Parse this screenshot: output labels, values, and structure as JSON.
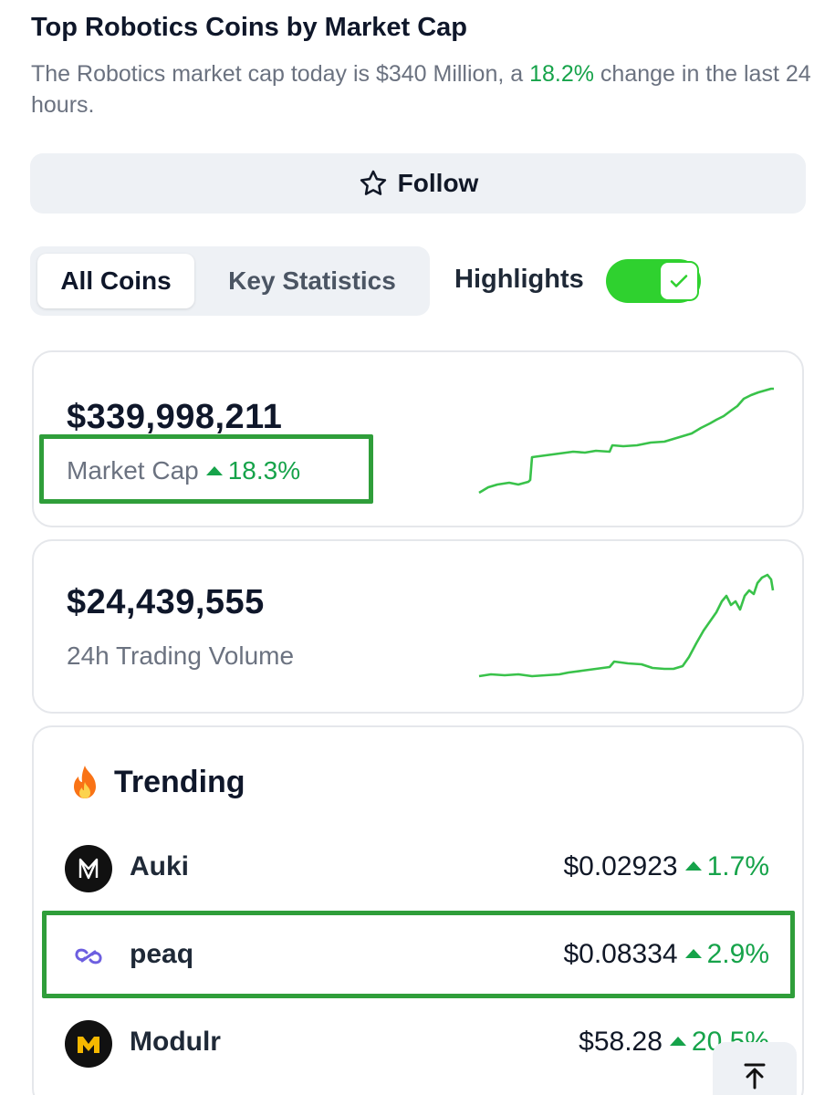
{
  "header": {
    "title": "Top Robotics Coins by Market Cap",
    "subtitle_prefix": "The Robotics market cap today is $340 Million, a ",
    "subtitle_change": "18.2%",
    "subtitle_suffix": " change in the last 24 hours."
  },
  "follow": {
    "label": "Follow",
    "icon": "star-outline-icon"
  },
  "tabs": [
    {
      "label": "All Coins",
      "active": true
    },
    {
      "label": "Key Statistics",
      "active": false
    }
  ],
  "highlights": {
    "label": "Highlights",
    "enabled": true
  },
  "market_cap": {
    "value": "$339,998,211",
    "label": "Market Cap",
    "change": "18.3%",
    "direction": "up"
  },
  "volume": {
    "value": "$24,439,555",
    "label": "24h Trading Volume"
  },
  "trending": {
    "title": "Trending",
    "icon": "fire-icon",
    "coins": [
      {
        "name": "Auki",
        "price": "$0.02923",
        "change": "1.7%",
        "logo": "auki-logo"
      },
      {
        "name": "peaq",
        "price": "$0.08334",
        "change": "2.9%",
        "logo": "peaq-logo"
      },
      {
        "name": "Modulr",
        "price": "$58.28",
        "change": "20.5%",
        "logo": "modulr-logo"
      }
    ]
  },
  "colors": {
    "positive": "#16a34a",
    "spark": "#39c24a",
    "toggle": "#2fd12f",
    "highlight_box": "#2f9e3a"
  }
}
